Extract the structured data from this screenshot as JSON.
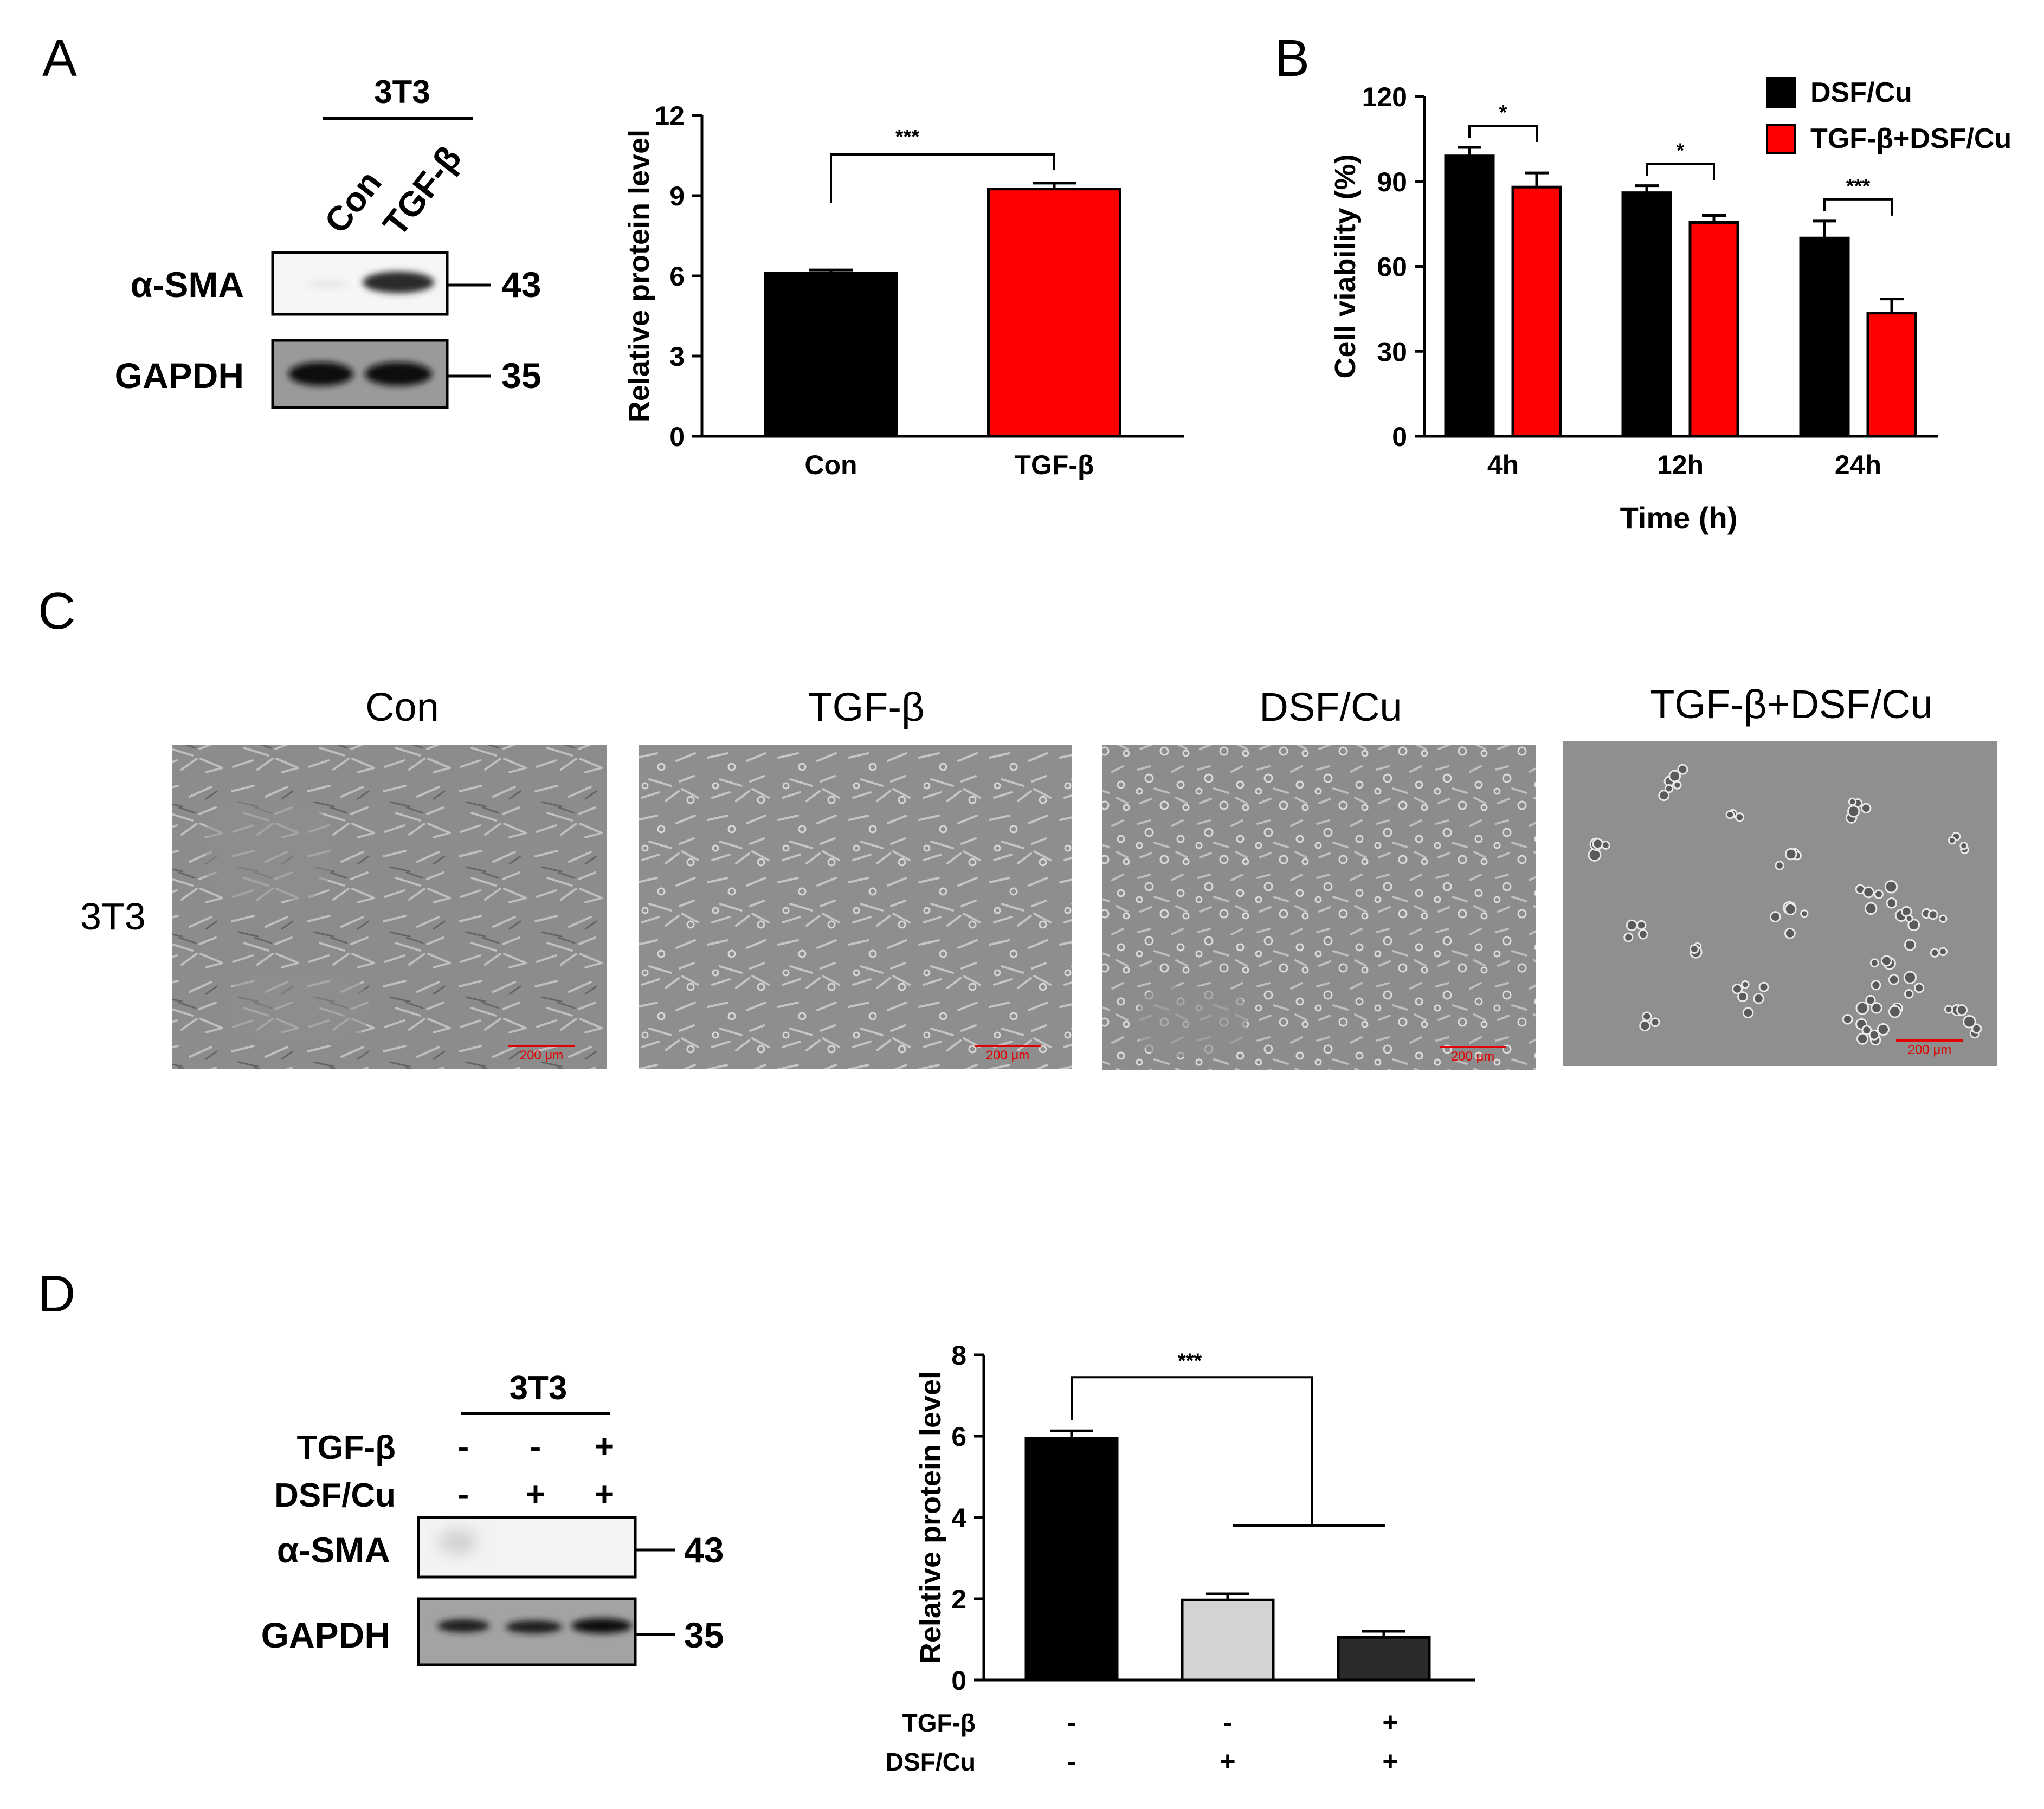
{
  "panels": {
    "A": {
      "letter": "A",
      "blot": {
        "cell_line": "3T3",
        "lanes": [
          "Con",
          "TGF-β"
        ],
        "bands": [
          {
            "name": "α-SMA",
            "kda": "43"
          },
          {
            "name": "GAPDH",
            "kda": "35"
          }
        ]
      },
      "chart": {
        "type": "bar",
        "ylabel": "Relative protein level",
        "ylim": [
          0,
          12
        ],
        "yticks": [
          "0",
          "3",
          "6",
          "9",
          "12"
        ],
        "categories": [
          "Con",
          "TGF-β"
        ],
        "values": [
          6.1,
          9.25
        ],
        "errors": [
          0.12,
          0.22
        ],
        "colors": [
          "#000000",
          "#ff0000"
        ],
        "significance": "***"
      }
    },
    "B": {
      "letter": "B",
      "chart": {
        "type": "bar",
        "ylabel": "Cell viability (%)",
        "xlabel": "Time (h)",
        "ylim": [
          0,
          120
        ],
        "yticks": [
          "0",
          "30",
          "60",
          "90",
          "120"
        ],
        "categories": [
          "4h",
          "12h",
          "24h"
        ],
        "series": [
          {
            "name": "DSF/Cu",
            "color": "#000000",
            "values": [
              99,
              86,
              70
            ],
            "errors": [
              3,
              2.5,
              6
            ]
          },
          {
            "name": "TGF-β+DSF/Cu",
            "color": "#ff0000",
            "values": [
              88,
              75.5,
              43.5
            ],
            "errors": [
              5,
              2.5,
              5
            ]
          }
        ],
        "significance": [
          "*",
          "*",
          "***"
        ],
        "legend": "top-right"
      }
    },
    "C": {
      "letter": "C",
      "row_label": "3T3",
      "conditions": [
        "Con",
        "TGF-β",
        "DSF/Cu",
        "TGF-β+DSF/Cu"
      ],
      "scale_bar": "200 μm"
    },
    "D": {
      "letter": "D",
      "blot": {
        "cell_line": "3T3",
        "treatments": [
          {
            "name": "TGF-β",
            "signs": [
              "-",
              "-",
              "+"
            ]
          },
          {
            "name": "DSF/Cu",
            "signs": [
              "-",
              "+",
              "+"
            ]
          }
        ],
        "bands": [
          {
            "name": "α-SMA",
            "kda": "43"
          },
          {
            "name": "GAPDH",
            "kda": "35"
          }
        ]
      },
      "chart": {
        "type": "bar",
        "ylabel": "Relative protein level",
        "ylim": [
          0,
          8
        ],
        "yticks": [
          "0",
          "2",
          "4",
          "6",
          "8"
        ],
        "values": [
          5.95,
          1.97,
          1.05
        ],
        "errors": [
          0.18,
          0.15,
          0.15
        ],
        "colors": [
          "#000000",
          "#d3d3d3",
          "#2b2b2b"
        ],
        "treatments": [
          {
            "name": "TGF-β",
            "signs": [
              "-",
              "-",
              "+"
            ]
          },
          {
            "name": "DSF/Cu",
            "signs": [
              "-",
              "+",
              "+"
            ]
          }
        ],
        "significance": "***"
      }
    }
  }
}
